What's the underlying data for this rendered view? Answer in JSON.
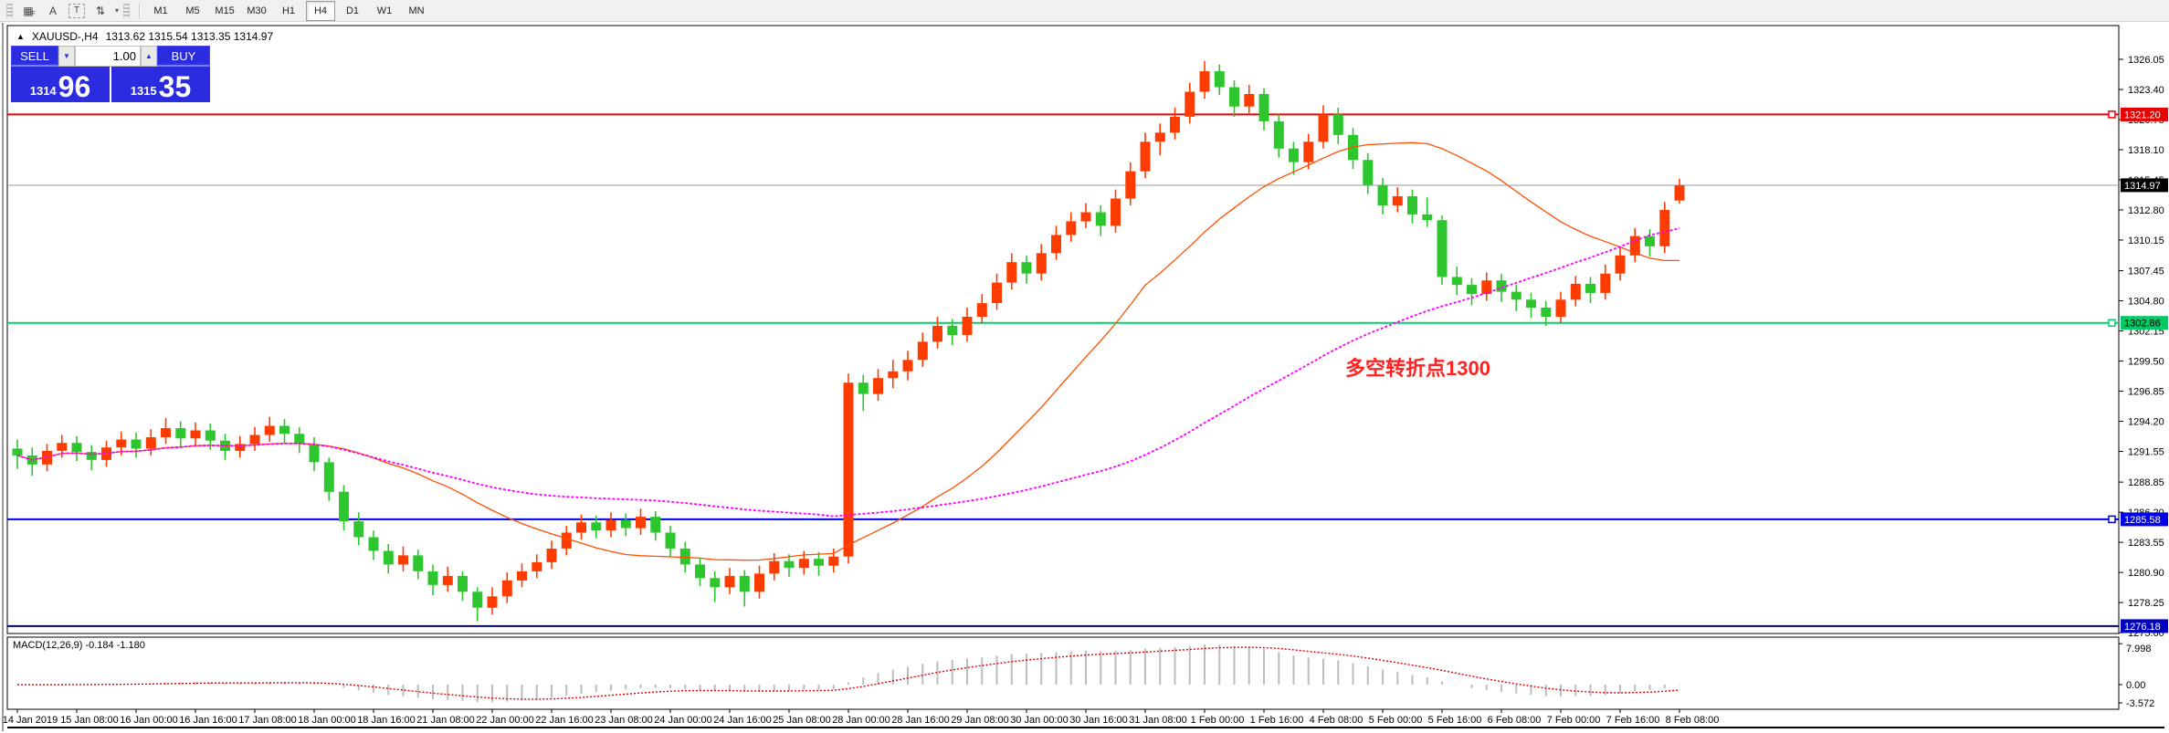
{
  "toolbar": {
    "icons": [
      {
        "name": "grid-f-icon",
        "glyph": "▦",
        "suffix": "F"
      },
      {
        "name": "text-a-icon",
        "glyph": "A",
        "suffix": ""
      },
      {
        "name": "label-t-icon",
        "glyph": "T",
        "suffix": ""
      },
      {
        "name": "arrow-style-icon",
        "glyph": "⇅",
        "suffix": ""
      }
    ],
    "dropdown_caret": "▾",
    "timeframes": [
      "M1",
      "M5",
      "M15",
      "M30",
      "H1",
      "H4",
      "D1",
      "W1",
      "MN"
    ],
    "active_timeframe": "H4"
  },
  "chart_header": {
    "collapse_arrow": "▲",
    "symbol": "XAUUSD-,H4",
    "ohlc": "1313.62 1315.54 1313.35 1314.97"
  },
  "trade_panel": {
    "sell_label": "SELL",
    "buy_label": "BUY",
    "volume": "1.00",
    "down_arrow": "▼",
    "up_arrow": "▲",
    "sell_price_small": "1314",
    "sell_price_big": "96",
    "buy_price_small": "1315",
    "buy_price_big": "35"
  },
  "annotation": {
    "text": "多空转折点1300",
    "color": "#ff2222"
  },
  "macd_panel": {
    "label": "MACD(12,26,9) -0.184 -1.180",
    "axis_ticks": [
      "7.998",
      "0.00",
      "-3.572"
    ]
  },
  "chart_data": {
    "type": "candlestick",
    "symbol": "XAUUSD-",
    "timeframe": "H4",
    "title": "XAUUSD-,H4 1313.62 1315.54 1313.35 1314.97",
    "price_axis": {
      "ticks": [
        "1326.05",
        "1323.40",
        "1320.75",
        "1318.10",
        "1315.45",
        "1312.80",
        "1310.15",
        "1307.45",
        "1304.80",
        "1302.15",
        "1299.50",
        "1296.85",
        "1294.20",
        "1291.55",
        "1288.85",
        "1286.20",
        "1283.55",
        "1280.90",
        "1278.25",
        "1275.60"
      ],
      "tick_step": 2.65,
      "current_price": 1314.97
    },
    "current_price_badge": {
      "label": "1314.97",
      "color": "#000000",
      "text_color": "#ffffff"
    },
    "hlines": [
      {
        "price": 1321.2,
        "label": "1321.20",
        "color": "#e80000",
        "badge_color": "#e80000",
        "text_color": "#ffffff"
      },
      {
        "price": 1302.86,
        "label": "1302.86",
        "color": "#00d26a",
        "badge_color": "#00c964",
        "text_color": "#000000"
      },
      {
        "price": 1285.58,
        "label": "1285.58",
        "color": "#0000e8",
        "badge_color": "#0000e8",
        "text_color": "#ffffff"
      },
      {
        "price": 1276.18,
        "label": "1276.18",
        "color": "#000088",
        "badge_color": "#0000c0",
        "text_color": "#ffffff"
      }
    ],
    "time_labels": [
      "14 Jan 2019",
      "15 Jan 08:00",
      "16 Jan 00:00",
      "16 Jan 16:00",
      "17 Jan 08:00",
      "18 Jan 00:00",
      "18 Jan 16:00",
      "21 Jan 08:00",
      "22 Jan 00:00",
      "22 Jan 16:00",
      "23 Jan 08:00",
      "24 Jan 00:00",
      "24 Jan 16:00",
      "25 Jan 08:00",
      "28 Jan 00:00",
      "28 Jan 16:00",
      "29 Jan 08:00",
      "30 Jan 00:00",
      "30 Jan 16:00",
      "31 Jan 08:00",
      "1 Feb 00:00",
      "1 Feb 16:00",
      "4 Feb 08:00",
      "5 Feb 00:00",
      "5 Feb 16:00",
      "6 Feb 08:00",
      "7 Feb 00:00",
      "7 Feb 16:00",
      "8 Feb 08:00"
    ],
    "candles": [
      [
        1291.8,
        1292.6,
        1290.0,
        1291.2
      ],
      [
        1291.2,
        1291.9,
        1289.4,
        1290.4
      ],
      [
        1290.4,
        1292.2,
        1289.8,
        1291.6
      ],
      [
        1291.6,
        1293.0,
        1291.0,
        1292.3
      ],
      [
        1292.3,
        1292.9,
        1290.7,
        1291.5
      ],
      [
        1291.5,
        1292.1,
        1289.9,
        1290.8
      ],
      [
        1290.8,
        1292.5,
        1290.2,
        1291.9
      ],
      [
        1291.9,
        1293.3,
        1291.2,
        1292.6
      ],
      [
        1292.6,
        1293.2,
        1291.0,
        1291.8
      ],
      [
        1291.8,
        1293.5,
        1291.2,
        1292.8
      ],
      [
        1292.8,
        1294.5,
        1292.2,
        1293.6
      ],
      [
        1293.6,
        1294.2,
        1291.9,
        1292.7
      ],
      [
        1292.7,
        1294.1,
        1292.0,
        1293.4
      ],
      [
        1293.4,
        1294.0,
        1291.7,
        1292.5
      ],
      [
        1292.5,
        1293.1,
        1290.8,
        1291.6
      ],
      [
        1291.6,
        1292.9,
        1291.0,
        1292.2
      ],
      [
        1292.2,
        1293.7,
        1291.6,
        1293.0
      ],
      [
        1293.0,
        1294.6,
        1292.4,
        1293.8
      ],
      [
        1293.8,
        1294.4,
        1292.3,
        1293.1
      ],
      [
        1293.1,
        1293.7,
        1291.4,
        1292.2
      ],
      [
        1292.2,
        1292.8,
        1289.8,
        1290.6
      ],
      [
        1290.6,
        1291.0,
        1287.2,
        1288.0
      ],
      [
        1288.0,
        1288.6,
        1284.6,
        1285.4
      ],
      [
        1285.4,
        1286.2,
        1283.3,
        1284.0
      ],
      [
        1284.0,
        1284.6,
        1282.0,
        1282.8
      ],
      [
        1282.8,
        1283.4,
        1280.8,
        1281.6
      ],
      [
        1281.6,
        1283.2,
        1281.0,
        1282.4
      ],
      [
        1282.4,
        1282.9,
        1280.3,
        1281.0
      ],
      [
        1281.0,
        1281.6,
        1278.9,
        1279.8
      ],
      [
        1279.8,
        1281.4,
        1279.2,
        1280.6
      ],
      [
        1280.6,
        1281.0,
        1278.4,
        1279.2
      ],
      [
        1279.2,
        1279.6,
        1276.6,
        1277.8
      ],
      [
        1277.8,
        1279.6,
        1277.2,
        1278.8
      ],
      [
        1278.8,
        1280.9,
        1278.2,
        1280.2
      ],
      [
        1280.2,
        1281.7,
        1279.6,
        1281.0
      ],
      [
        1281.0,
        1282.5,
        1280.4,
        1281.8
      ],
      [
        1281.8,
        1283.7,
        1281.2,
        1283.0
      ],
      [
        1283.0,
        1285.0,
        1282.4,
        1284.4
      ],
      [
        1284.4,
        1286.0,
        1283.8,
        1285.3
      ],
      [
        1285.3,
        1285.9,
        1283.9,
        1284.6
      ],
      [
        1284.6,
        1286.2,
        1284.0,
        1285.5
      ],
      [
        1285.5,
        1286.1,
        1284.1,
        1284.8
      ],
      [
        1284.8,
        1286.5,
        1284.2,
        1285.8
      ],
      [
        1285.8,
        1286.3,
        1283.7,
        1284.4
      ],
      [
        1284.4,
        1285.0,
        1282.3,
        1283.0
      ],
      [
        1283.0,
        1283.6,
        1280.9,
        1281.6
      ],
      [
        1281.6,
        1282.2,
        1279.7,
        1280.4
      ],
      [
        1280.4,
        1281.0,
        1278.3,
        1279.6
      ],
      [
        1279.6,
        1281.3,
        1279.0,
        1280.6
      ],
      [
        1280.6,
        1281.1,
        1277.9,
        1279.2
      ],
      [
        1279.2,
        1281.5,
        1278.6,
        1280.8
      ],
      [
        1280.8,
        1282.6,
        1280.2,
        1281.9
      ],
      [
        1281.9,
        1282.5,
        1280.5,
        1281.3
      ],
      [
        1281.3,
        1282.8,
        1280.7,
        1282.1
      ],
      [
        1282.1,
        1282.7,
        1280.6,
        1281.5
      ],
      [
        1281.5,
        1283.0,
        1280.9,
        1282.3
      ],
      [
        1282.3,
        1298.4,
        1281.7,
        1297.6
      ],
      [
        1297.6,
        1298.3,
        1295.1,
        1296.6
      ],
      [
        1296.6,
        1298.8,
        1296.0,
        1298.0
      ],
      [
        1298.0,
        1299.6,
        1297.1,
        1298.6
      ],
      [
        1298.6,
        1300.4,
        1297.8,
        1299.6
      ],
      [
        1299.6,
        1302.0,
        1299.0,
        1301.2
      ],
      [
        1301.2,
        1303.4,
        1300.6,
        1302.6
      ],
      [
        1302.6,
        1303.2,
        1300.9,
        1301.8
      ],
      [
        1301.8,
        1304.2,
        1301.2,
        1303.4
      ],
      [
        1303.4,
        1305.4,
        1302.8,
        1304.6
      ],
      [
        1304.6,
        1307.2,
        1304.0,
        1306.4
      ],
      [
        1306.4,
        1309.0,
        1305.8,
        1308.2
      ],
      [
        1308.2,
        1308.8,
        1306.3,
        1307.2
      ],
      [
        1307.2,
        1309.8,
        1306.6,
        1309.0
      ],
      [
        1309.0,
        1311.4,
        1308.4,
        1310.6
      ],
      [
        1310.6,
        1312.6,
        1310.0,
        1311.8
      ],
      [
        1311.8,
        1313.4,
        1311.2,
        1312.6
      ],
      [
        1312.6,
        1313.2,
        1310.5,
        1311.4
      ],
      [
        1311.4,
        1314.6,
        1310.8,
        1313.8
      ],
      [
        1313.8,
        1317.0,
        1313.2,
        1316.2
      ],
      [
        1316.2,
        1319.6,
        1315.6,
        1318.8
      ],
      [
        1318.8,
        1320.4,
        1317.6,
        1319.6
      ],
      [
        1319.6,
        1321.8,
        1319.0,
        1321.0
      ],
      [
        1321.0,
        1324.0,
        1320.4,
        1323.2
      ],
      [
        1323.2,
        1325.9,
        1322.6,
        1325.0
      ],
      [
        1325.0,
        1325.6,
        1322.9,
        1323.6
      ],
      [
        1323.6,
        1324.2,
        1321.0,
        1321.9
      ],
      [
        1321.9,
        1323.8,
        1321.3,
        1323.0
      ],
      [
        1323.0,
        1323.5,
        1319.8,
        1320.6
      ],
      [
        1320.6,
        1321.2,
        1317.4,
        1318.2
      ],
      [
        1318.2,
        1318.8,
        1315.9,
        1317.0
      ],
      [
        1317.0,
        1319.5,
        1316.4,
        1318.8
      ],
      [
        1318.8,
        1322.0,
        1318.2,
        1321.2
      ],
      [
        1321.2,
        1321.8,
        1318.6,
        1319.4
      ],
      [
        1319.4,
        1320.0,
        1316.4,
        1317.2
      ],
      [
        1317.2,
        1317.8,
        1314.2,
        1315.0
      ],
      [
        1315.0,
        1315.6,
        1312.4,
        1313.2
      ],
      [
        1313.2,
        1314.8,
        1312.6,
        1314.0
      ],
      [
        1314.0,
        1314.6,
        1311.6,
        1312.4
      ],
      [
        1312.4,
        1313.9,
        1311.3,
        1311.9
      ],
      [
        1311.9,
        1312.3,
        1306.2,
        1306.9
      ],
      [
        1306.9,
        1307.8,
        1305.3,
        1306.2
      ],
      [
        1306.2,
        1306.8,
        1304.4,
        1305.4
      ],
      [
        1305.4,
        1307.3,
        1304.8,
        1306.6
      ],
      [
        1306.6,
        1307.2,
        1304.7,
        1305.6
      ],
      [
        1305.6,
        1306.2,
        1303.9,
        1304.9
      ],
      [
        1304.9,
        1305.5,
        1303.3,
        1304.2
      ],
      [
        1304.2,
        1304.8,
        1302.6,
        1303.4
      ],
      [
        1303.4,
        1305.6,
        1302.9,
        1304.9
      ],
      [
        1304.9,
        1307.0,
        1304.3,
        1306.3
      ],
      [
        1306.3,
        1306.9,
        1304.6,
        1305.5
      ],
      [
        1305.5,
        1308.0,
        1304.9,
        1307.2
      ],
      [
        1307.2,
        1309.5,
        1306.6,
        1308.8
      ],
      [
        1308.8,
        1311.2,
        1308.2,
        1310.5
      ],
      [
        1310.5,
        1311.1,
        1308.7,
        1309.6
      ],
      [
        1309.6,
        1313.5,
        1309.0,
        1312.8
      ],
      [
        1313.62,
        1315.54,
        1313.35,
        1314.97
      ]
    ],
    "colors": {
      "bull": "#ff3c00",
      "bear": "#2ec62e",
      "ma_fast": "#ff4f00",
      "ma_slow": "#ff00ff",
      "macd_hist": "#bdbdbd",
      "macd_signal": "#e00000",
      "current_line": "#9a9a9a"
    },
    "ma": [
      {
        "name": "fast",
        "period": 21
      },
      {
        "name": "slow",
        "period": 55
      }
    ],
    "macd": {
      "fast": 12,
      "slow": 26,
      "signal": 9,
      "main_value": -0.184,
      "signal_value": -1.18,
      "ylim": [
        -3.572,
        7.998
      ]
    },
    "legend_position": "none",
    "grid": false
  }
}
